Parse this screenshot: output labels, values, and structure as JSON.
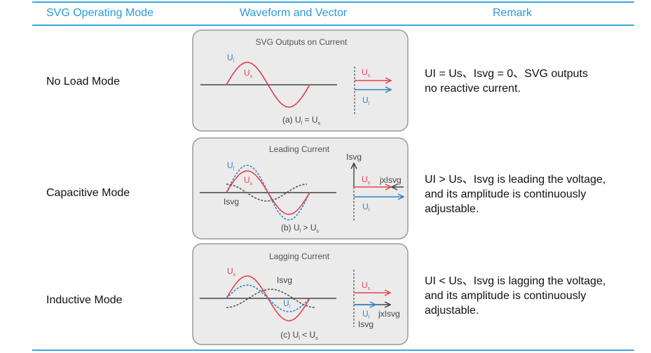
{
  "header": {
    "col_mode": "SVG Operating Mode",
    "col_waveform": "Waveform and Vector",
    "col_remark": "Remark"
  },
  "colors": {
    "accent": "#3aa7df",
    "us_red": "#e8434f",
    "ul_blue": "#2f86c8",
    "isvg_gray": "#555555"
  },
  "rows": [
    {
      "mode": "No Load Mode",
      "remark_lines": [
        "UI = Us、Isvg = 0、SVG outputs",
        "no reactive current."
      ],
      "diagram": {
        "title": "SVG Outputs on Current",
        "wave_ul": {
          "main": "U",
          "sub": "l"
        },
        "wave_us": {
          "main": "U",
          "sub": "s"
        },
        "vec_us": {
          "main": "U",
          "sub": "s"
        },
        "vec_ul": {
          "main": "U",
          "sub": "l"
        },
        "caption": {
          "prefix": "(a) U",
          "sub1": "l",
          "op": " = U",
          "sub2": "s"
        }
      }
    },
    {
      "mode": "Capacitive Mode",
      "remark_lines": [
        "UI > Us、Isvg is leading the voltage,",
        "and its amplitude is continuously",
        "adjustable."
      ],
      "diagram": {
        "title": "Leading Current",
        "wave_ul": {
          "main": "U",
          "sub": "l"
        },
        "wave_us": {
          "main": "U",
          "sub": "s"
        },
        "wave_isvg": "Isvg",
        "vec_isvg": "Isvg",
        "vec_us": {
          "main": "U",
          "sub": "s"
        },
        "vec_jx": "jxIsvg",
        "vec_ul": {
          "main": "U",
          "sub": "l"
        },
        "caption": {
          "prefix": "(b) U",
          "sub1": "l",
          "op": " > U",
          "sub2": "s"
        }
      }
    },
    {
      "mode": "Inductive Mode",
      "remark_lines": [
        "UI < Us、Isvg is lagging the voltage,",
        "and its amplitude is continuously",
        "adjustable."
      ],
      "diagram": {
        "title": "Lagging Current",
        "wave_us": {
          "main": "U",
          "sub": "s"
        },
        "wave_isvg": "Isvg",
        "wave_ul": {
          "main": "U",
          "sub": "l"
        },
        "vec_us": {
          "main": "U",
          "sub": "s"
        },
        "vec_ul": {
          "main": "U",
          "sub": "l"
        },
        "vec_jx": "jxIsvg",
        "vec_isvg": "Isvg",
        "caption": {
          "prefix": "(c) U",
          "sub1": "l",
          "op": " < U",
          "sub2": "s"
        }
      }
    }
  ]
}
